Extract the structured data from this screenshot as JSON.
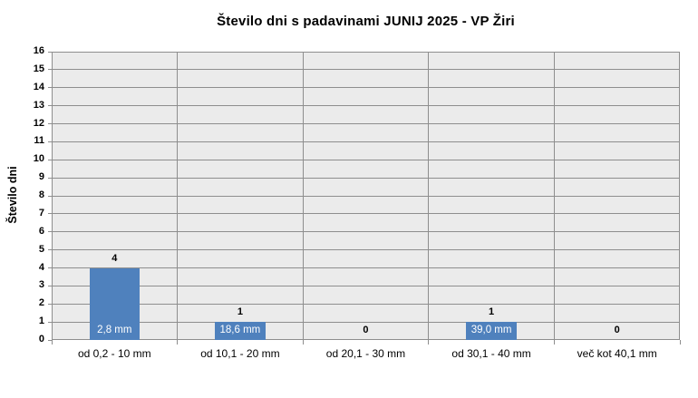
{
  "chart_data": {
    "type": "bar",
    "title": "Število dni s padavinami JUNIJ 2025 - VP Žiri",
    "ylabel": "Število dni",
    "xlabel": "",
    "categories": [
      "od 0,2 - 10 mm",
      "od 10,1 - 20 mm",
      "od 20,1 - 30 mm",
      "od 30,1 - 40 mm",
      "več kot 40,1 mm"
    ],
    "values": [
      4,
      1,
      0,
      1,
      0
    ],
    "bar_value_labels": [
      "2,8 mm",
      "18,6 mm",
      "",
      "39,0 mm",
      ""
    ],
    "ylim": [
      0,
      16
    ],
    "ytick_step": 1,
    "grid": true,
    "legend": "none",
    "colors": {
      "bar": "#4f81bd",
      "plot_bg": "#ebebeb",
      "grid": "#8e8e8e",
      "bar_label_text": "#ffffff",
      "text": "#000000",
      "background": "#ffffff"
    }
  }
}
